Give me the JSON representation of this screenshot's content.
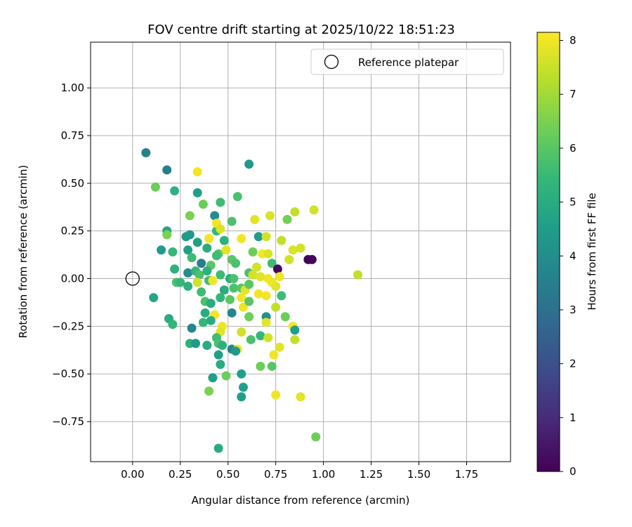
{
  "chart_data": {
    "type": "scatter",
    "title": "FOV centre drift starting at 2025/10/22 18:51:23",
    "xlabel": "Angular distance from reference (arcmin)",
    "ylabel": "Rotation from reference (arcmin)",
    "xlim": [
      -0.22,
      1.98
    ],
    "ylim": [
      -0.96,
      1.24
    ],
    "xticks": [
      0.0,
      0.25,
      0.5,
      0.75,
      1.0,
      1.25,
      1.5,
      1.75
    ],
    "xtick_labels": [
      "0.00",
      "0.25",
      "0.50",
      "0.75",
      "1.00",
      "1.25",
      "1.50",
      "1.75"
    ],
    "yticks": [
      -0.75,
      -0.5,
      -0.25,
      0.0,
      0.25,
      0.5,
      0.75,
      1.0
    ],
    "ytick_labels": [
      "−0.75",
      "−0.50",
      "−0.25",
      "0.00",
      "0.25",
      "0.50",
      "0.75",
      "1.00"
    ],
    "grid": true,
    "legend": {
      "placement": "top-right",
      "entries": [
        "Reference platepar"
      ]
    },
    "reference_point": {
      "x": 0.0,
      "y": 0.0,
      "label": "Reference platepar"
    },
    "colorbar": {
      "label": "Hours from first FF file",
      "min": 0,
      "max": 8.15,
      "ticks": [
        0,
        1,
        2,
        3,
        4,
        5,
        6,
        7,
        8
      ],
      "tick_labels": [
        "0",
        "1",
        "2",
        "3",
        "4",
        "5",
        "6",
        "7",
        "8"
      ],
      "colormap": "viridis",
      "colormap_stops": [
        "#440154",
        "#482878",
        "#3e4a89",
        "#31688e",
        "#26828e",
        "#1f9e89",
        "#35b779",
        "#6ece58",
        "#b5de2b",
        "#fde725"
      ]
    },
    "points": [
      {
        "x": 0.07,
        "y": 0.66,
        "h": 3.6
      },
      {
        "x": 0.18,
        "y": 0.57,
        "h": 3.5
      },
      {
        "x": 0.61,
        "y": 0.6,
        "h": 4.4
      },
      {
        "x": 0.12,
        "y": 0.48,
        "h": 6.3
      },
      {
        "x": 0.22,
        "y": 0.46,
        "h": 5.2
      },
      {
        "x": 0.34,
        "y": 0.56,
        "h": 8.0
      },
      {
        "x": 0.34,
        "y": 0.45,
        "h": 4.6
      },
      {
        "x": 0.37,
        "y": 0.39,
        "h": 6.3
      },
      {
        "x": 0.46,
        "y": 0.4,
        "h": 5.6
      },
      {
        "x": 0.55,
        "y": 0.43,
        "h": 5.8
      },
      {
        "x": 0.3,
        "y": 0.33,
        "h": 6.5
      },
      {
        "x": 0.43,
        "y": 0.33,
        "h": 4.0
      },
      {
        "x": 0.52,
        "y": 0.3,
        "h": 5.8
      },
      {
        "x": 0.64,
        "y": 0.31,
        "h": 7.8
      },
      {
        "x": 0.72,
        "y": 0.33,
        "h": 7.7
      },
      {
        "x": 0.81,
        "y": 0.31,
        "h": 6.4
      },
      {
        "x": 0.85,
        "y": 0.35,
        "h": 7.4
      },
      {
        "x": 0.95,
        "y": 0.36,
        "h": 7.6
      },
      {
        "x": 0.18,
        "y": 0.25,
        "h": 4.8
      },
      {
        "x": 0.18,
        "y": 0.23,
        "h": 6.5
      },
      {
        "x": 0.28,
        "y": 0.22,
        "h": 4.4
      },
      {
        "x": 0.3,
        "y": 0.23,
        "h": 4.4
      },
      {
        "x": 0.44,
        "y": 0.25,
        "h": 5.4
      },
      {
        "x": 0.44,
        "y": 0.29,
        "h": 8.0
      },
      {
        "x": 0.46,
        "y": 0.26,
        "h": 7.7
      },
      {
        "x": 0.48,
        "y": 0.2,
        "h": 5.2
      },
      {
        "x": 0.57,
        "y": 0.21,
        "h": 8.0
      },
      {
        "x": 0.66,
        "y": 0.22,
        "h": 4.4
      },
      {
        "x": 0.7,
        "y": 0.22,
        "h": 7.6
      },
      {
        "x": 0.78,
        "y": 0.2,
        "h": 7.4
      },
      {
        "x": 0.15,
        "y": 0.15,
        "h": 4.4
      },
      {
        "x": 0.21,
        "y": 0.14,
        "h": 5.4
      },
      {
        "x": 0.29,
        "y": 0.15,
        "h": 4.6
      },
      {
        "x": 0.34,
        "y": 0.19,
        "h": 4.6
      },
      {
        "x": 0.39,
        "y": 0.16,
        "h": 5.0
      },
      {
        "x": 0.4,
        "y": 0.21,
        "h": 8.0
      },
      {
        "x": 0.45,
        "y": 0.13,
        "h": 6.0
      },
      {
        "x": 0.49,
        "y": 0.15,
        "h": 7.8
      },
      {
        "x": 0.52,
        "y": 0.1,
        "h": 6.0
      },
      {
        "x": 0.63,
        "y": 0.14,
        "h": 6.3
      },
      {
        "x": 0.68,
        "y": 0.13,
        "h": 8.0
      },
      {
        "x": 0.71,
        "y": 0.13,
        "h": 7.7
      },
      {
        "x": 0.84,
        "y": 0.15,
        "h": 7.7
      },
      {
        "x": 0.88,
        "y": 0.16,
        "h": 7.6
      },
      {
        "x": 0.31,
        "y": 0.11,
        "h": 5.6
      },
      {
        "x": 0.36,
        "y": 0.08,
        "h": 3.5
      },
      {
        "x": 0.41,
        "y": 0.07,
        "h": 6.0
      },
      {
        "x": 0.44,
        "y": 0.12,
        "h": 5.6
      },
      {
        "x": 0.54,
        "y": 0.08,
        "h": 5.8
      },
      {
        "x": 0.61,
        "y": 0.03,
        "h": 5.8
      },
      {
        "x": 0.65,
        "y": 0.06,
        "h": 7.6
      },
      {
        "x": 0.73,
        "y": 0.08,
        "h": 5.6
      },
      {
        "x": 0.76,
        "y": 0.05,
        "h": 0.2
      },
      {
        "x": 0.82,
        "y": 0.1,
        "h": 7.6
      },
      {
        "x": 0.92,
        "y": 0.1,
        "h": 0.1
      },
      {
        "x": 0.94,
        "y": 0.1,
        "h": 0.1
      },
      {
        "x": 1.18,
        "y": 0.02,
        "h": 7.4
      },
      {
        "x": 0.22,
        "y": 0.05,
        "h": 5.2
      },
      {
        "x": 0.29,
        "y": 0.03,
        "h": 4.0
      },
      {
        "x": 0.33,
        "y": 0.04,
        "h": 5.4
      },
      {
        "x": 0.35,
        "y": 0.02,
        "h": 5.8
      },
      {
        "x": 0.39,
        "y": 0.04,
        "h": 5.2
      },
      {
        "x": 0.46,
        "y": 0.02,
        "h": 5.6
      },
      {
        "x": 0.51,
        "y": 0.0,
        "h": 5.0
      },
      {
        "x": 0.53,
        "y": 0.0,
        "h": 5.8
      },
      {
        "x": 0.63,
        "y": 0.02,
        "h": 7.6
      },
      {
        "x": 0.67,
        "y": 0.01,
        "h": 7.8
      },
      {
        "x": 0.71,
        "y": 0.0,
        "h": 8.0
      },
      {
        "x": 0.73,
        "y": -0.02,
        "h": 8.0
      },
      {
        "x": 0.77,
        "y": 0.01,
        "h": 8.0
      },
      {
        "x": 0.23,
        "y": -0.02,
        "h": 5.8
      },
      {
        "x": 0.25,
        "y": -0.02,
        "h": 5.4
      },
      {
        "x": 0.29,
        "y": -0.04,
        "h": 5.2
      },
      {
        "x": 0.34,
        "y": -0.02,
        "h": 7.6
      },
      {
        "x": 0.4,
        "y": -0.01,
        "h": 5.6
      },
      {
        "x": 0.42,
        "y": -0.01,
        "h": 8.0
      },
      {
        "x": 0.48,
        "y": -0.06,
        "h": 5.0
      },
      {
        "x": 0.53,
        "y": -0.05,
        "h": 5.8
      },
      {
        "x": 0.57,
        "y": -0.05,
        "h": 6.0
      },
      {
        "x": 0.59,
        "y": -0.06,
        "h": 7.8
      },
      {
        "x": 0.61,
        "y": -0.03,
        "h": 6.0
      },
      {
        "x": 0.66,
        "y": -0.08,
        "h": 8.0
      },
      {
        "x": 0.7,
        "y": -0.09,
        "h": 8.0
      },
      {
        "x": 0.75,
        "y": -0.04,
        "h": 7.8
      },
      {
        "x": 0.78,
        "y": -0.09,
        "h": 5.6
      },
      {
        "x": 0.11,
        "y": -0.1,
        "h": 4.8
      },
      {
        "x": 0.36,
        "y": -0.07,
        "h": 5.6
      },
      {
        "x": 0.38,
        "y": -0.12,
        "h": 5.8
      },
      {
        "x": 0.41,
        "y": -0.13,
        "h": 5.0
      },
      {
        "x": 0.46,
        "y": -0.1,
        "h": 5.4
      },
      {
        "x": 0.51,
        "y": -0.11,
        "h": 6.0
      },
      {
        "x": 0.57,
        "y": -0.1,
        "h": 8.0
      },
      {
        "x": 0.58,
        "y": -0.15,
        "h": 8.0
      },
      {
        "x": 0.61,
        "y": -0.12,
        "h": 6.0
      },
      {
        "x": 0.38,
        "y": -0.18,
        "h": 5.0
      },
      {
        "x": 0.43,
        "y": -0.19,
        "h": 8.0
      },
      {
        "x": 0.52,
        "y": -0.18,
        "h": 3.8
      },
      {
        "x": 0.61,
        "y": -0.2,
        "h": 6.3
      },
      {
        "x": 0.7,
        "y": -0.2,
        "h": 4.0
      },
      {
        "x": 0.75,
        "y": -0.15,
        "h": 7.4
      },
      {
        "x": 0.8,
        "y": -0.2,
        "h": 6.3
      },
      {
        "x": 0.19,
        "y": -0.21,
        "h": 5.0
      },
      {
        "x": 0.21,
        "y": -0.24,
        "h": 5.4
      },
      {
        "x": 0.31,
        "y": -0.26,
        "h": 3.8
      },
      {
        "x": 0.37,
        "y": -0.23,
        "h": 5.4
      },
      {
        "x": 0.41,
        "y": -0.22,
        "h": 5.0
      },
      {
        "x": 0.47,
        "y": -0.25,
        "h": 8.0
      },
      {
        "x": 0.46,
        "y": -0.28,
        "h": 7.8
      },
      {
        "x": 0.57,
        "y": -0.28,
        "h": 7.6
      },
      {
        "x": 0.7,
        "y": -0.23,
        "h": 7.8
      },
      {
        "x": 0.84,
        "y": -0.25,
        "h": 8.0
      },
      {
        "x": 0.85,
        "y": -0.27,
        "h": 4.6
      },
      {
        "x": 0.3,
        "y": -0.34,
        "h": 5.2
      },
      {
        "x": 0.33,
        "y": -0.34,
        "h": 4.4
      },
      {
        "x": 0.39,
        "y": -0.35,
        "h": 5.0
      },
      {
        "x": 0.44,
        "y": -0.31,
        "h": 5.6
      },
      {
        "x": 0.45,
        "y": -0.34,
        "h": 5.8
      },
      {
        "x": 0.47,
        "y": -0.35,
        "h": 5.2
      },
      {
        "x": 0.52,
        "y": -0.37,
        "h": 3.8
      },
      {
        "x": 0.55,
        "y": -0.37,
        "h": 8.0
      },
      {
        "x": 0.62,
        "y": -0.32,
        "h": 5.8
      },
      {
        "x": 0.67,
        "y": -0.3,
        "h": 5.4
      },
      {
        "x": 0.71,
        "y": -0.31,
        "h": 7.6
      },
      {
        "x": 0.77,
        "y": -0.36,
        "h": 7.8
      },
      {
        "x": 0.85,
        "y": -0.32,
        "h": 7.4
      },
      {
        "x": 0.45,
        "y": -0.4,
        "h": 4.6
      },
      {
        "x": 0.46,
        "y": -0.45,
        "h": 5.0
      },
      {
        "x": 0.54,
        "y": -0.38,
        "h": 4.4
      },
      {
        "x": 0.74,
        "y": -0.4,
        "h": 8.0
      },
      {
        "x": 0.67,
        "y": -0.46,
        "h": 6.3
      },
      {
        "x": 0.73,
        "y": -0.46,
        "h": 6.0
      },
      {
        "x": 0.42,
        "y": -0.52,
        "h": 4.6
      },
      {
        "x": 0.49,
        "y": -0.51,
        "h": 6.3
      },
      {
        "x": 0.57,
        "y": -0.5,
        "h": 4.6
      },
      {
        "x": 0.58,
        "y": -0.57,
        "h": 4.6
      },
      {
        "x": 0.4,
        "y": -0.59,
        "h": 6.5
      },
      {
        "x": 0.57,
        "y": -0.62,
        "h": 4.6
      },
      {
        "x": 0.75,
        "y": -0.61,
        "h": 8.0
      },
      {
        "x": 0.88,
        "y": -0.62,
        "h": 7.8
      },
      {
        "x": 0.96,
        "y": -0.83,
        "h": 6.3
      },
      {
        "x": 0.45,
        "y": -0.89,
        "h": 5.0
      }
    ]
  }
}
